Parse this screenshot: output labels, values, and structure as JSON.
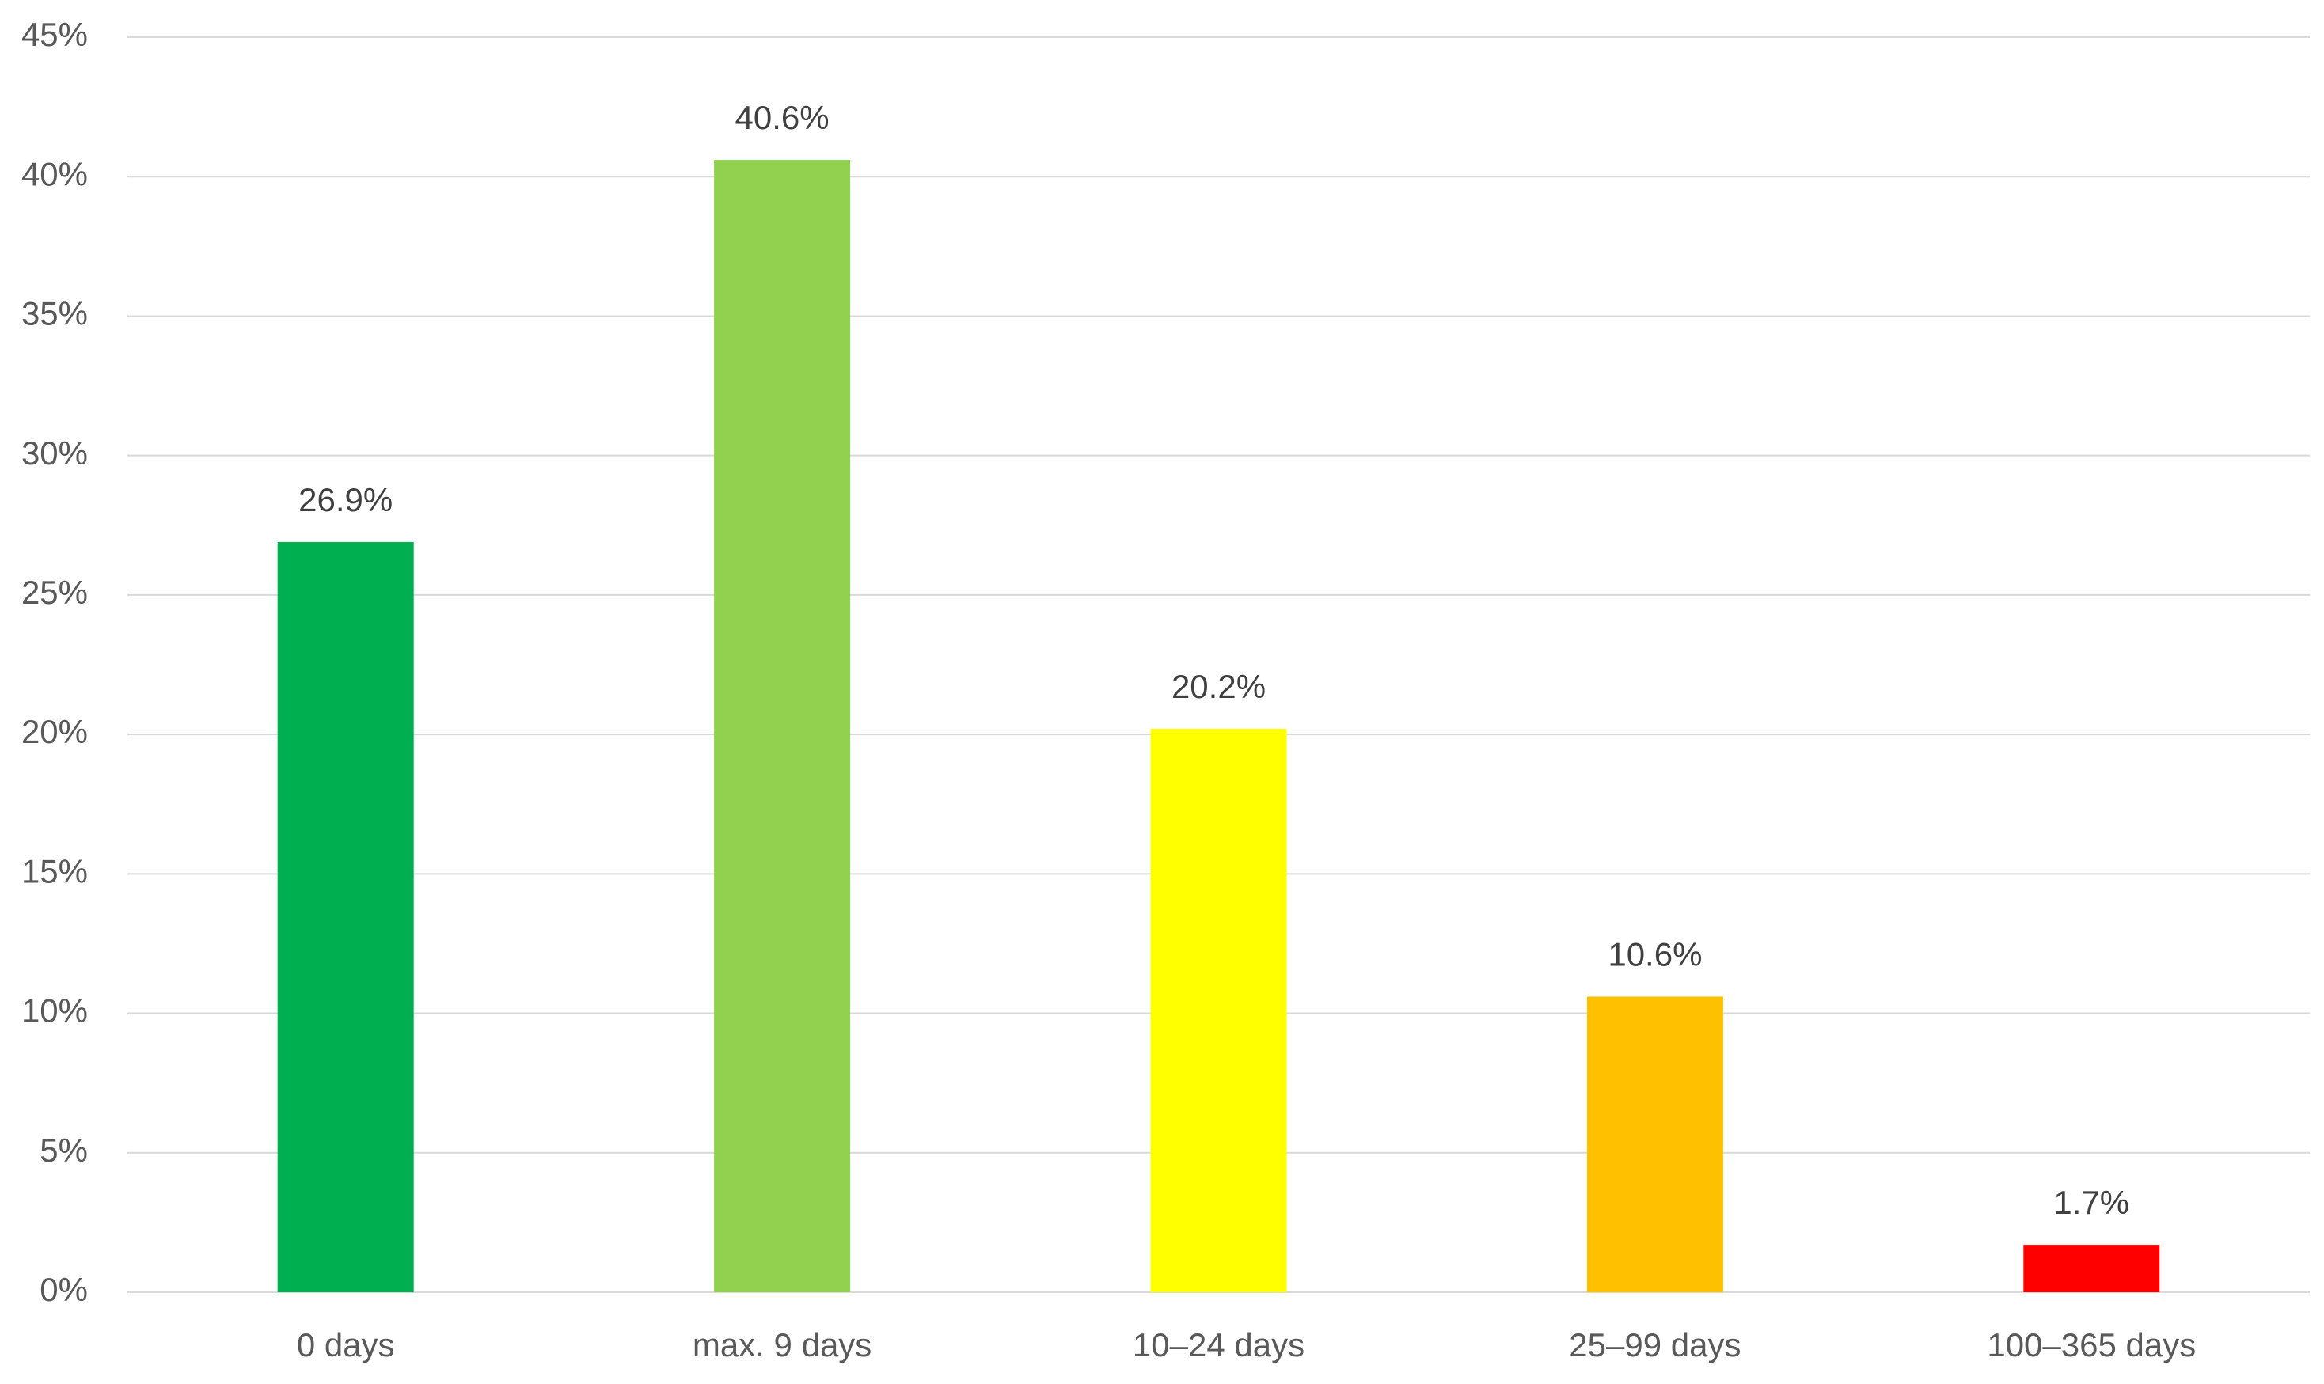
{
  "chart_data": {
    "type": "bar",
    "categories": [
      "0 days",
      "max. 9 days",
      "10–24 days",
      "25–99 days",
      "100–365 days"
    ],
    "values": [
      26.9,
      40.6,
      20.2,
      10.6,
      1.7
    ],
    "value_labels": [
      "26.9%",
      "40.6%",
      "20.2%",
      "10.6%",
      "1.7%"
    ],
    "colors": [
      "#00b050",
      "#92d050",
      "#ffff00",
      "#ffc000",
      "#ff0000"
    ],
    "ylim": [
      0,
      45
    ],
    "yticks": [
      {
        "value": 0,
        "label": "0%"
      },
      {
        "value": 5,
        "label": "5%"
      },
      {
        "value": 10,
        "label": "10%"
      },
      {
        "value": 15,
        "label": "15%"
      },
      {
        "value": 20,
        "label": "20%"
      },
      {
        "value": 25,
        "label": "25%"
      },
      {
        "value": 30,
        "label": "30%"
      },
      {
        "value": 35,
        "label": "35%"
      },
      {
        "value": 40,
        "label": "40%"
      },
      {
        "value": 45,
        "label": "45%"
      }
    ],
    "grid": true
  }
}
